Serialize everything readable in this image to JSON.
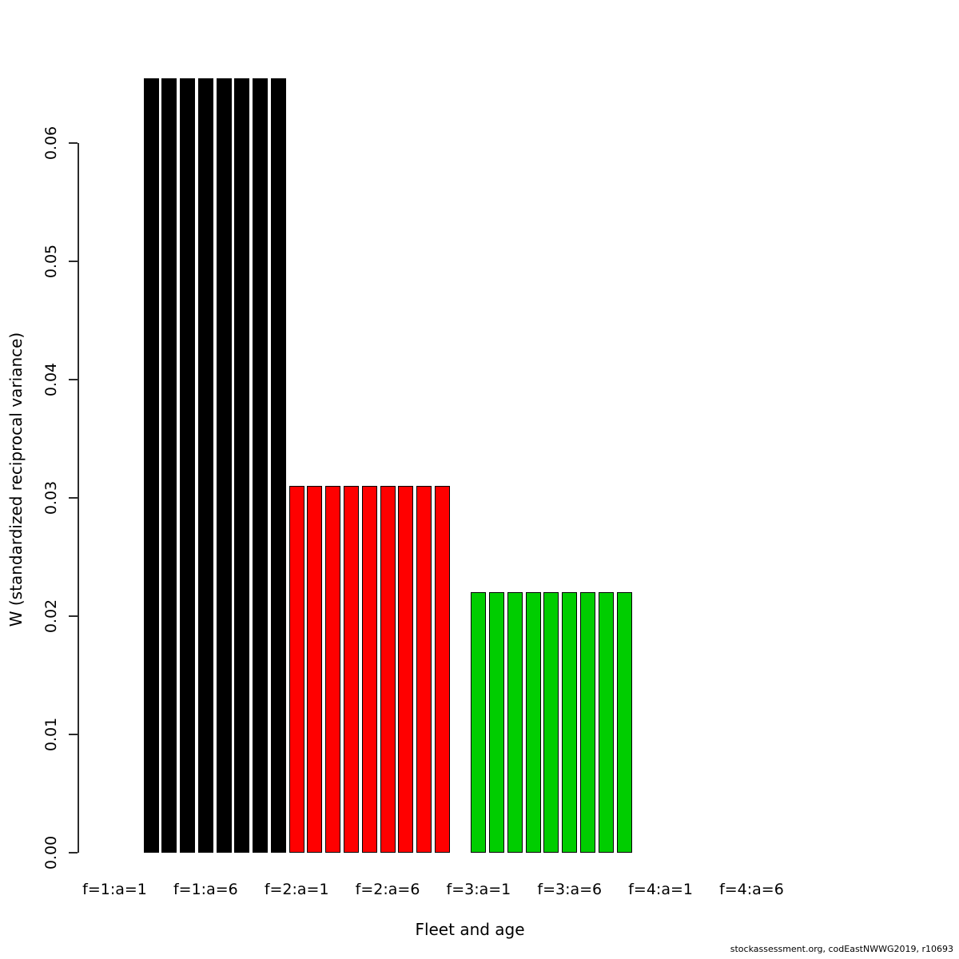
{
  "figure": {
    "footer": "stockassessment.org, codEastNWWG2019, r10693",
    "background_color": "#ffffff",
    "axis_color": "#000000"
  },
  "chart_data": {
    "type": "bar",
    "title": "",
    "xlabel": "Fleet and age",
    "ylabel": "W (standardized reciprocal variance)",
    "ylim": [
      0,
      0.0655
    ],
    "grid": false,
    "legend": false,
    "y_ticks": [
      0.0,
      0.01,
      0.02,
      0.03,
      0.04,
      0.05,
      0.06
    ],
    "y_tick_labels": [
      "0.00",
      "0.01",
      "0.02",
      "0.03",
      "0.04",
      "0.05",
      "0.06"
    ],
    "x_tick_labels": [
      "f=1:a=1",
      "f=1:a=6",
      "f=2:a=1",
      "f=2:a=6",
      "f=3:a=1",
      "f=3:a=6",
      "f=4:a=1",
      "f=4:a=6"
    ],
    "x_tick_slots": [
      0,
      5,
      10,
      15,
      20,
      25,
      30,
      35
    ],
    "ages_per_fleet": 10,
    "bar_border_color": "#000000",
    "series": [
      {
        "name": "f=1",
        "fleet": 1,
        "color": "#000000",
        "ages": [
          1,
          2,
          3,
          4,
          5,
          6,
          7,
          8,
          9,
          10
        ],
        "values": [
          0,
          0,
          0.0655,
          0.0655,
          0.0655,
          0.0655,
          0.0655,
          0.0655,
          0.0655,
          0.0655
        ]
      },
      {
        "name": "f=2",
        "fleet": 2,
        "color": "#FF0000",
        "ages": [
          1,
          2,
          3,
          4,
          5,
          6,
          7,
          8,
          9,
          10
        ],
        "values": [
          0.031,
          0.031,
          0.031,
          0.031,
          0.031,
          0.031,
          0.031,
          0.031,
          0.031,
          0
        ]
      },
      {
        "name": "f=3",
        "fleet": 3,
        "color": "#00CD00",
        "ages": [
          1,
          2,
          3,
          4,
          5,
          6,
          7,
          8,
          9,
          10
        ],
        "values": [
          0.022,
          0.022,
          0.022,
          0.022,
          0.022,
          0.022,
          0.022,
          0.022,
          0.022,
          0
        ]
      },
      {
        "name": "f=4",
        "fleet": 4,
        "color": "#000000",
        "ages": [
          1,
          2,
          3,
          4,
          5,
          6,
          7,
          8,
          9,
          10
        ],
        "values": [
          0,
          0,
          0,
          0,
          0,
          0,
          0,
          0,
          0,
          0
        ]
      }
    ]
  }
}
